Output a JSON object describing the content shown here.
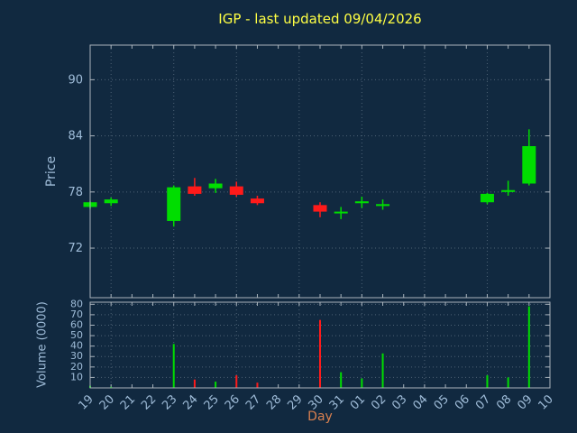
{
  "colors": {
    "background": "#112940",
    "title": "#ffff44",
    "axis_text": "#9fbcd8",
    "xlabel_text": "#d9804f",
    "grid": "#4d6275",
    "border": "#aab4bd",
    "up": "#00dd00",
    "down": "#ff1a1a"
  },
  "chart_data": {
    "type": "candlestick",
    "title": "IGP - last updated 09/04/2026",
    "xlabel": "Day",
    "ylabel_price": "Price",
    "ylabel_volume": "Volume (0000)",
    "price_ylim": [
      66.7,
      93.7
    ],
    "price_ticks": [
      72,
      78,
      84,
      90
    ],
    "volume_ylim": [
      0,
      82
    ],
    "volume_ticks": [
      10,
      20,
      30,
      40,
      50,
      60,
      70,
      80
    ],
    "categories": [
      "19",
      "20",
      "21",
      "22",
      "23",
      "24",
      "25",
      "26",
      "27",
      "28",
      "29",
      "30",
      "31",
      "01",
      "02",
      "03",
      "04",
      "05",
      "06",
      "07",
      "08",
      "09",
      "10"
    ],
    "grid_days": [
      "20",
      "23",
      "26",
      "29",
      "01",
      "04",
      "07",
      "10"
    ],
    "candles": [
      {
        "day": "19",
        "open": 76.4,
        "high": 77.0,
        "low": 76.2,
        "close": 76.9,
        "volume": 2
      },
      {
        "day": "20",
        "open": 76.8,
        "high": 77.4,
        "low": 76.5,
        "close": 77.2,
        "volume": 1
      },
      {
        "day": "23",
        "open": 74.9,
        "high": 78.7,
        "low": 74.3,
        "close": 78.5,
        "volume": 42
      },
      {
        "day": "24",
        "open": 78.6,
        "high": 79.5,
        "low": 77.6,
        "close": 77.8,
        "volume": 8
      },
      {
        "day": "25",
        "open": 78.4,
        "high": 79.4,
        "low": 77.9,
        "close": 78.9,
        "volume": 6
      },
      {
        "day": "26",
        "open": 78.6,
        "high": 79.1,
        "low": 77.5,
        "close": 77.7,
        "volume": 12
      },
      {
        "day": "27",
        "open": 77.3,
        "high": 77.6,
        "low": 76.6,
        "close": 76.8,
        "volume": 5
      },
      {
        "day": "30",
        "open": 76.6,
        "high": 76.9,
        "low": 75.3,
        "close": 75.9,
        "volume": 65
      },
      {
        "day": "31",
        "open": 75.8,
        "high": 76.4,
        "low": 75.1,
        "close": 75.9,
        "volume": 15
      },
      {
        "day": "01",
        "open": 76.8,
        "high": 77.5,
        "low": 76.3,
        "close": 77.0,
        "volume": 9
      },
      {
        "day": "02",
        "open": 76.5,
        "high": 77.2,
        "low": 76.1,
        "close": 76.7,
        "volume": 33
      },
      {
        "day": "07",
        "open": 76.9,
        "high": 77.9,
        "low": 76.7,
        "close": 77.8,
        "volume": 12
      },
      {
        "day": "08",
        "open": 78.0,
        "high": 79.2,
        "low": 77.6,
        "close": 78.2,
        "volume": 10
      },
      {
        "day": "09",
        "open": 78.9,
        "high": 84.7,
        "low": 78.7,
        "close": 82.9,
        "volume": 78
      }
    ]
  }
}
